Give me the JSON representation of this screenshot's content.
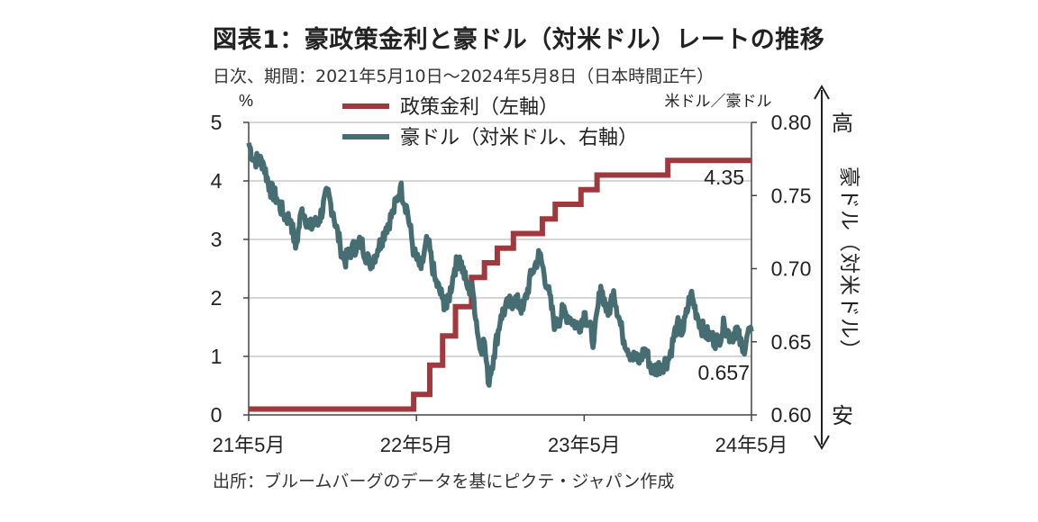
{
  "title": "図表1：豪政策金利と豪ドル（対米ドル）レートの推移",
  "subtitle": "日次、期間：2021年5月10日～2024年5月8日（日本時間正午）",
  "source": "出所：ブルームバーグのデータを基にピクテ・ジャパン作成",
  "chart_data": {
    "type": "line",
    "left_axis": {
      "unit_label": "%",
      "ylim": [
        0,
        5
      ],
      "ticks": [
        "0",
        "1",
        "2",
        "3",
        "4",
        "5"
      ]
    },
    "right_axis": {
      "unit_label": "米ドル／豪ドル",
      "ylim": [
        0.6,
        0.8
      ],
      "ticks": [
        "0.60",
        "0.65",
        "0.70",
        "0.75",
        "0.80"
      ],
      "direction_top": "高",
      "direction_bottom": "安",
      "series_caption": "豪ドル（対米ドル）"
    },
    "x_ticks": [
      "21年5月",
      "22年5月",
      "23年5月",
      "24年5月"
    ],
    "grid": true,
    "legend": "top-center",
    "series": [
      {
        "name": "政策金利（左軸）",
        "axis": "left",
        "color": "#a0393d",
        "step": true,
        "points": [
          [
            "2021-05-10",
            0.1
          ],
          [
            "2022-05-04",
            0.35
          ],
          [
            "2022-06-08",
            0.85
          ],
          [
            "2022-07-06",
            1.35
          ],
          [
            "2022-08-03",
            1.85
          ],
          [
            "2022-09-07",
            2.35
          ],
          [
            "2022-10-05",
            2.6
          ],
          [
            "2022-11-02",
            2.85
          ],
          [
            "2022-12-07",
            3.1
          ],
          [
            "2023-02-08",
            3.35
          ],
          [
            "2023-03-08",
            3.6
          ],
          [
            "2023-05-03",
            3.85
          ],
          [
            "2023-06-07",
            4.1
          ],
          [
            "2023-11-08",
            4.35
          ],
          [
            "2024-05-08",
            4.35
          ]
        ],
        "last_label": "4.35"
      },
      {
        "name": "豪ドル（対米ドル、右軸）",
        "axis": "right",
        "color": "#466e72",
        "points": [
          [
            "2021-05-10",
            0.786
          ],
          [
            "2021-05-20",
            0.775
          ],
          [
            "2021-06-10",
            0.773
          ],
          [
            "2021-06-25",
            0.755
          ],
          [
            "2021-07-10",
            0.748
          ],
          [
            "2021-07-25",
            0.737
          ],
          [
            "2021-08-10",
            0.733
          ],
          [
            "2021-08-20",
            0.714
          ],
          [
            "2021-09-03",
            0.741
          ],
          [
            "2021-09-20",
            0.728
          ],
          [
            "2021-10-10",
            0.733
          ],
          [
            "2021-10-28",
            0.752
          ],
          [
            "2021-11-10",
            0.738
          ],
          [
            "2021-11-25",
            0.716
          ],
          [
            "2021-12-05",
            0.705
          ],
          [
            "2021-12-20",
            0.713
          ],
          [
            "2022-01-10",
            0.718
          ],
          [
            "2022-01-28",
            0.703
          ],
          [
            "2022-02-15",
            0.713
          ],
          [
            "2022-03-05",
            0.728
          ],
          [
            "2022-03-20",
            0.738
          ],
          [
            "2022-04-05",
            0.756
          ],
          [
            "2022-04-20",
            0.74
          ],
          [
            "2022-05-05",
            0.71
          ],
          [
            "2022-05-20",
            0.7
          ],
          [
            "2022-06-03",
            0.72
          ],
          [
            "2022-06-20",
            0.692
          ],
          [
            "2022-07-05",
            0.68
          ],
          [
            "2022-07-15",
            0.673
          ],
          [
            "2022-08-01",
            0.7
          ],
          [
            "2022-08-12",
            0.708
          ],
          [
            "2022-08-28",
            0.688
          ],
          [
            "2022-09-10",
            0.684
          ],
          [
            "2022-09-25",
            0.645
          ],
          [
            "2022-10-05",
            0.65
          ],
          [
            "2022-10-13",
            0.622
          ],
          [
            "2022-10-25",
            0.64
          ],
          [
            "2022-11-10",
            0.668
          ],
          [
            "2022-11-25",
            0.675
          ],
          [
            "2022-12-10",
            0.679
          ],
          [
            "2022-12-28",
            0.672
          ],
          [
            "2023-01-15",
            0.696
          ],
          [
            "2023-02-02",
            0.71
          ],
          [
            "2023-02-20",
            0.686
          ],
          [
            "2023-03-08",
            0.66
          ],
          [
            "2023-03-25",
            0.671
          ],
          [
            "2023-04-10",
            0.666
          ],
          [
            "2023-04-28",
            0.66
          ],
          [
            "2023-05-12",
            0.67
          ],
          [
            "2023-05-31",
            0.65
          ],
          [
            "2023-06-15",
            0.688
          ],
          [
            "2023-07-01",
            0.668
          ],
          [
            "2023-07-13",
            0.685
          ],
          [
            "2023-08-01",
            0.655
          ],
          [
            "2023-08-20",
            0.641
          ],
          [
            "2023-09-05",
            0.636
          ],
          [
            "2023-09-20",
            0.645
          ],
          [
            "2023-10-05",
            0.63
          ],
          [
            "2023-10-25",
            0.634
          ],
          [
            "2023-11-10",
            0.638
          ],
          [
            "2023-11-28",
            0.662
          ],
          [
            "2023-12-10",
            0.656
          ],
          [
            "2023-12-28",
            0.683
          ],
          [
            "2024-01-10",
            0.669
          ],
          [
            "2024-01-25",
            0.657
          ],
          [
            "2024-02-10",
            0.653
          ],
          [
            "2024-02-25",
            0.65
          ],
          [
            "2024-03-10",
            0.662
          ],
          [
            "2024-03-25",
            0.652
          ],
          [
            "2024-04-05",
            0.66
          ],
          [
            "2024-04-19",
            0.643
          ],
          [
            "2024-04-30",
            0.656
          ],
          [
            "2024-05-08",
            0.657
          ]
        ],
        "last_label": "0.657"
      }
    ]
  }
}
